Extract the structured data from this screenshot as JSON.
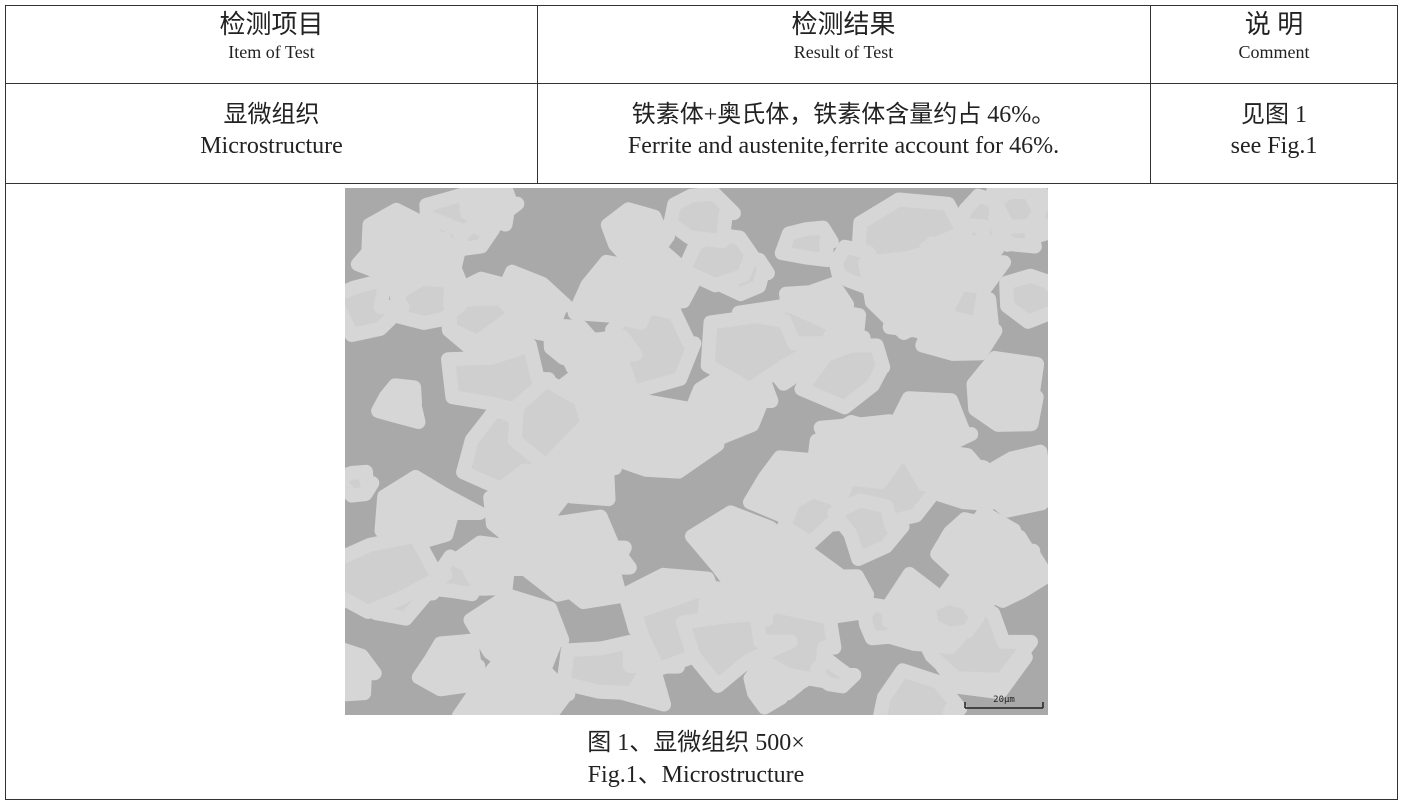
{
  "table": {
    "header": [
      {
        "zh": "检测项目",
        "en": "Item of Test"
      },
      {
        "zh": "检测结果",
        "en": "Result of Test"
      },
      {
        "zh": "说 明",
        "en": "Comment"
      }
    ],
    "row": [
      {
        "zh": "显微组织",
        "en": "Microstructure"
      },
      {
        "zh": "铁素体+奥氏体，铁素体含量约占 46%。",
        "en": "Ferrite and austenite,ferrite account for 46%."
      },
      {
        "zh": "见图 1",
        "en": "see Fig.1"
      }
    ]
  },
  "figure": {
    "scale_bar": "20μm",
    "caption_zh": "图 1、显微组织 500×",
    "caption_en": "Fig.1、Microstructure"
  }
}
